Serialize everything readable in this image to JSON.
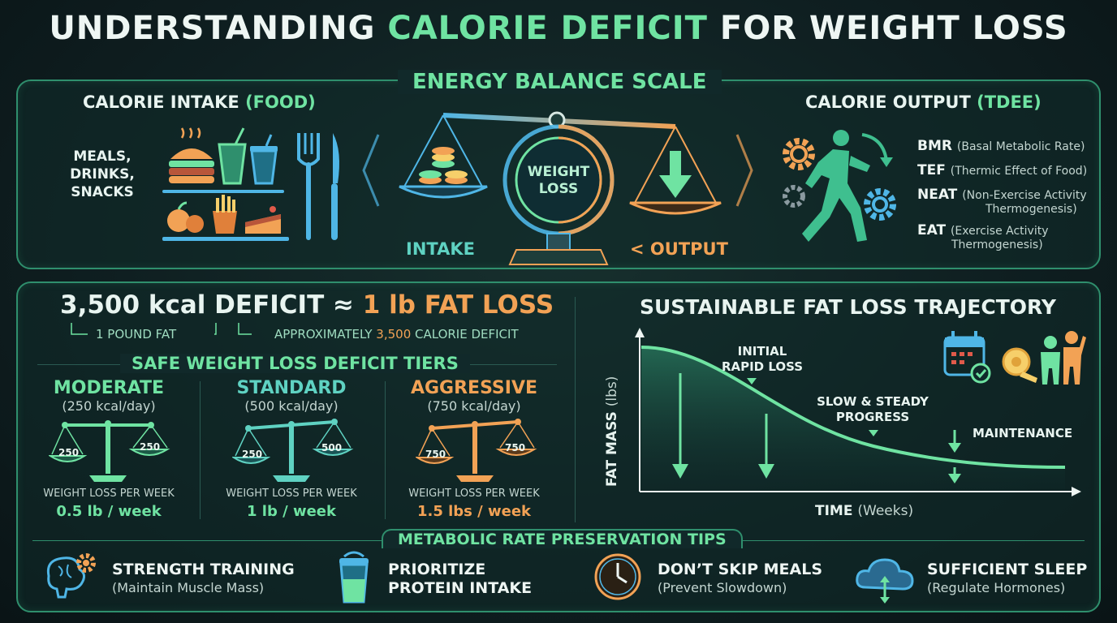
{
  "title": {
    "part1": "UNDERSTANDING ",
    "highlight": "CALORIE DEFICIT",
    "part2": " FOR WEIGHT LOSS"
  },
  "energy_balance": {
    "title": "ENERGY BALANCE SCALE",
    "center_label_line1": "WEIGHT",
    "center_label_line2": "LOSS",
    "intake_label": "INTAKE",
    "output_label": "< OUTPUT"
  },
  "intake": {
    "title_main": "CALORIE INTAKE ",
    "title_paren": "(FOOD)",
    "items_line1": "MEALS,",
    "items_line2": "DRINKS,",
    "items_line3": "SNACKS"
  },
  "output": {
    "title_main": "CALORIE OUTPUT ",
    "title_paren": "(TDEE)",
    "components": [
      {
        "abbr": "BMR",
        "desc": "(Basal Metabolic Rate)",
        "desc2": ""
      },
      {
        "abbr": "TEF",
        "desc": "(Thermic Effect of Food)",
        "desc2": ""
      },
      {
        "abbr": "NEAT",
        "desc": "(Non-Exercise Activity",
        "desc2": "Thermogenesis)"
      },
      {
        "abbr": "EAT",
        "desc": "(Exercise Activity",
        "desc2": "Thermogenesis)"
      }
    ]
  },
  "deficit": {
    "headline_part1": "3,500 kcal DEFICIT ≈ ",
    "headline_part2": "1 lb FAT LOSS",
    "note1": "1 POUND FAT",
    "note2_part1": "APPROXIMATELY ",
    "note2_highlight": "3,500",
    "note2_part2": " CALORIE DEFICIT"
  },
  "tiers": {
    "title": "SAFE WEIGHT LOSS DEFICIT TIERS",
    "caption": "WEIGHT LOSS PER WEEK",
    "items": [
      {
        "name": "MODERATE",
        "sub": "(250 kcal/day)",
        "pan": "250",
        "rate": "0.5 lb / week",
        "color": "#6fe3a2"
      },
      {
        "name": "STANDARD",
        "sub": "(500 kcal/day)",
        "pan_left": "250",
        "pan": "500",
        "rate": "1 lb / week",
        "color": "#5fd2c2"
      },
      {
        "name": "AGGRESSIVE",
        "sub": "(750 kcal/day)",
        "pan": "750",
        "rate": "1.5 lbs / week",
        "color": "#f2a255"
      }
    ]
  },
  "trajectory": {
    "title": "SUSTAINABLE FAT LOSS TRAJECTORY",
    "y_label": "FAT MASS ",
    "y_unit": "(lbs)",
    "x_label": "TIME ",
    "x_unit": "(Weeks)",
    "phase1_line1": "INITIAL",
    "phase1_line2": "RAPID LOSS",
    "phase2_line1": "SLOW & STEADY",
    "phase2_line2": "PROGRESS",
    "phase3": "MAINTENANCE"
  },
  "tips": {
    "title": "METABOLIC RATE PRESERVATION TIPS",
    "items": [
      {
        "title1": "STRENGTH TRAINING",
        "title2": "",
        "sub": "(Maintain Muscle Mass)",
        "icon": "brain-gear-icon"
      },
      {
        "title1": "PRIORITIZE",
        "title2": "PROTEIN INTAKE",
        "sub": "",
        "icon": "protein-shake-icon"
      },
      {
        "title1": "DON’T SKIP MEALS",
        "title2": "",
        "sub": "(Prevent Slowdown)",
        "icon": "clock-icon"
      },
      {
        "title1": "SUFFICIENT SLEEP",
        "title2": "",
        "sub": "(Regulate Hormones)",
        "icon": "cloud-icon"
      }
    ]
  },
  "colors": {
    "accent_green": "#6fe3a2",
    "accent_teal": "#5fd2c2",
    "accent_orange": "#f2a255",
    "accent_blue": "#4fb6e6"
  }
}
